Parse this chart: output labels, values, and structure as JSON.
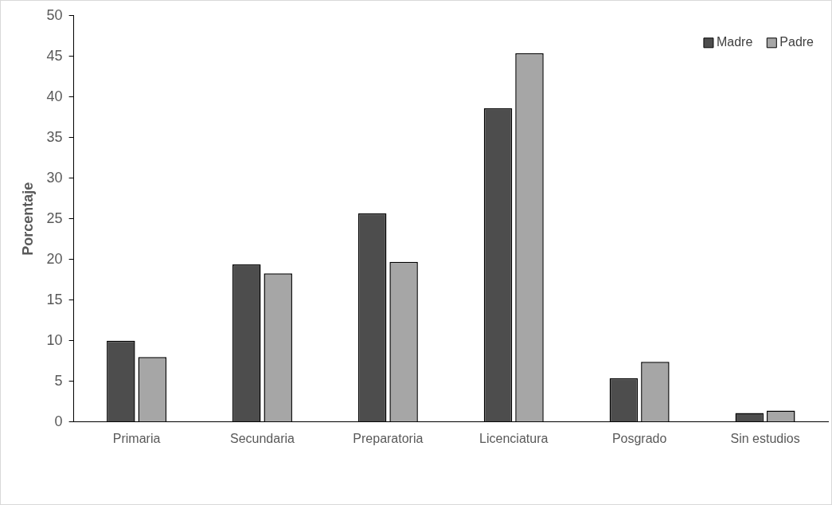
{
  "chart_data": {
    "type": "bar",
    "ylabel": "Porcentaje",
    "categories": [
      "Primaria",
      "Secundaria",
      "Preparatoria",
      "Licenciatura",
      "Posgrado",
      "Sin estudios"
    ],
    "series": [
      {
        "name": "Madre",
        "color": "#4d4d4d",
        "values": [
          10.0,
          19.4,
          25.7,
          38.6,
          5.4,
          1.1
        ]
      },
      {
        "name": "Padre",
        "color": "#a6a6a6",
        "values": [
          8.0,
          18.3,
          19.7,
          45.4,
          7.4,
          1.4
        ]
      }
    ],
    "ylim": [
      0,
      50
    ],
    "yticks": [
      0,
      5,
      10,
      15,
      20,
      25,
      30,
      35,
      40,
      45,
      50
    ],
    "grid": false,
    "legend": "top right"
  }
}
